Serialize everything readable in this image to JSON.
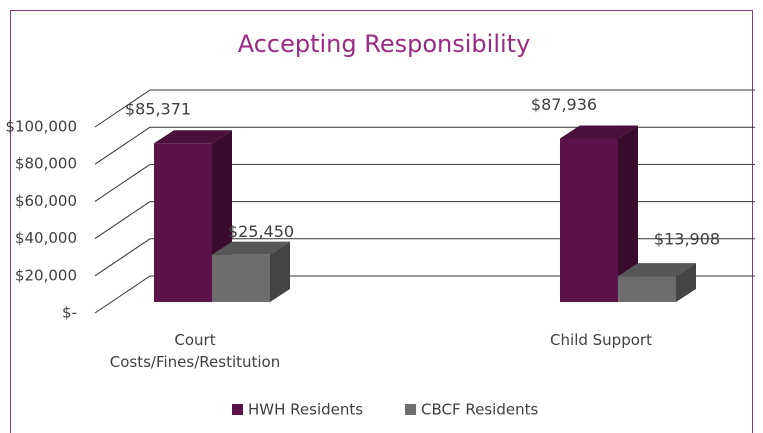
{
  "chart_data": {
    "type": "bar3d",
    "title": "Accepting Responsibility",
    "categories": [
      "Court Costs/Fines/Restitution",
      "Child Support"
    ],
    "series": [
      {
        "name": "HWH Residents",
        "color": "#5c1349",
        "values": [
          85371,
          87936
        ],
        "value_labels": [
          "$85,371",
          "$87,936"
        ]
      },
      {
        "name": "CBCF Residents",
        "color": "#6d6d6d",
        "values": [
          25450,
          13908
        ],
        "value_labels": [
          "$25,450",
          "$13,908"
        ]
      }
    ],
    "ylim": [
      0,
      100000
    ],
    "yticks": [
      {
        "value": 0,
        "label": "$-"
      },
      {
        "value": 20000,
        "label": "$20,000"
      },
      {
        "value": 40000,
        "label": "$40,000"
      },
      {
        "value": 60000,
        "label": "$60,000"
      },
      {
        "value": 80000,
        "label": "$80,000"
      },
      {
        "value": 100000,
        "label": "$100,000"
      }
    ],
    "grid": true,
    "legend": "bottom"
  }
}
